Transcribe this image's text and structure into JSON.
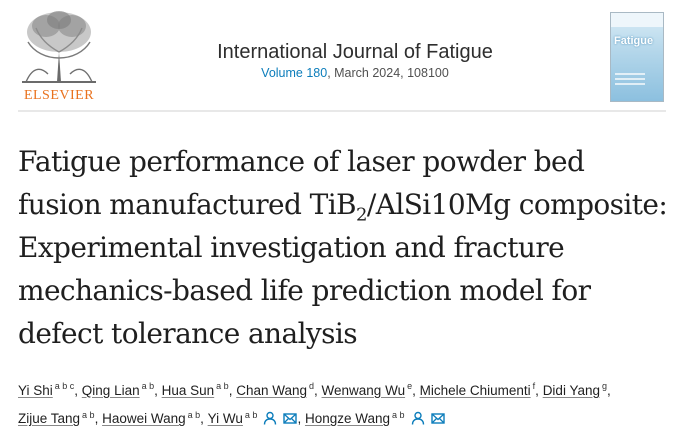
{
  "publisher": {
    "name": "ELSEVIER",
    "logo_icon": "elsevier-tree-icon"
  },
  "journal": {
    "title": "International Journal of Fatigue",
    "volume_link": "Volume 180",
    "issue_rest": ", March 2024, 108100"
  },
  "cover": {
    "word": "Fatigue"
  },
  "article": {
    "title_part1": "Fatigue performance of laser powder bed fusion manufactured TiB",
    "title_sub": "2",
    "title_part2": "/AlSi10Mg composite: Experimental investigation and fracture mechanics-based life prediction model for defect tolerance analysis"
  },
  "authors": [
    {
      "name": "Yi Shi",
      "aff": "a b c"
    },
    {
      "name": "Qing Lian",
      "aff": "a b"
    },
    {
      "name": "Hua Sun",
      "aff": "a b"
    },
    {
      "name": "Chan Wang",
      "aff": "d"
    },
    {
      "name": "Wenwang Wu",
      "aff": "e"
    },
    {
      "name": "Michele Chiumenti",
      "aff": "f"
    },
    {
      "name": "Didi Yang",
      "aff": "g"
    },
    {
      "name": "Zijue Tang",
      "aff": "a b"
    },
    {
      "name": "Haowei Wang",
      "aff": "a b"
    },
    {
      "name": "Yi Wu",
      "aff": "a b"
    },
    {
      "name": "Hongze Wang",
      "aff": "a b"
    }
  ],
  "icons": {
    "person": "person-icon",
    "email": "email-icon"
  },
  "colors": {
    "publisher_orange": "#e9711c",
    "link_blue": "#0c7dbb"
  }
}
